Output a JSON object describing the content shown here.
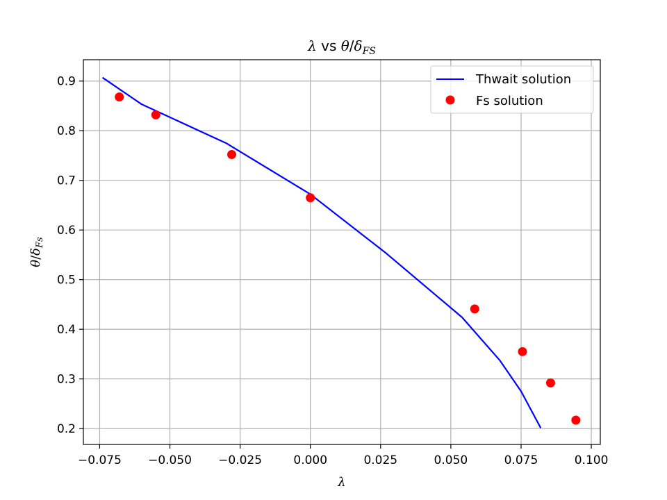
{
  "chart_data": {
    "type": "line",
    "title": {
      "main_sym": "λ",
      "mid": " vs ",
      "num_sym": "θ",
      "slash": "/",
      "den_sym": "δ",
      "den_sub": "FS"
    },
    "xlabel": "λ",
    "ylabel": {
      "num_sym": "θ",
      "slash": "/",
      "den_sym": "δ",
      "den_sub": "Fs"
    },
    "xlim": [
      -0.0808,
      0.1032
    ],
    "ylim": [
      0.168,
      0.943
    ],
    "x_ticks": [
      -0.075,
      -0.05,
      -0.025,
      0.0,
      0.025,
      0.05,
      0.075,
      0.1
    ],
    "x_tick_labels": [
      "−0.075",
      "−0.050",
      "−0.025",
      "0.000",
      "0.025",
      "0.050",
      "0.075",
      "0.100"
    ],
    "y_ticks": [
      0.2,
      0.3,
      0.4,
      0.5,
      0.6,
      0.7,
      0.8,
      0.9
    ],
    "y_tick_labels": [
      "0.2",
      "0.3",
      "0.4",
      "0.5",
      "0.6",
      "0.7",
      "0.8",
      "0.9"
    ],
    "grid": true,
    "legend": "top-right",
    "series": [
      {
        "name": "Thwait solution",
        "kind": "line",
        "color": "#0000ff",
        "x": [
          -0.074,
          -0.06,
          -0.03,
          0.0,
          0.027,
          0.054,
          0.0675,
          0.075,
          0.082
        ],
        "y": [
          0.907,
          0.853,
          0.775,
          0.672,
          0.553,
          0.424,
          0.337,
          0.275,
          0.201
        ]
      },
      {
        "name": "Fs solution",
        "kind": "scatter",
        "color": "#ff0000",
        "x": [
          -0.068,
          -0.055,
          -0.028,
          0.0,
          0.0585,
          0.0755,
          0.0855,
          0.0945
        ],
        "y": [
          0.868,
          0.832,
          0.752,
          0.665,
          0.441,
          0.355,
          0.292,
          0.217
        ]
      }
    ]
  }
}
